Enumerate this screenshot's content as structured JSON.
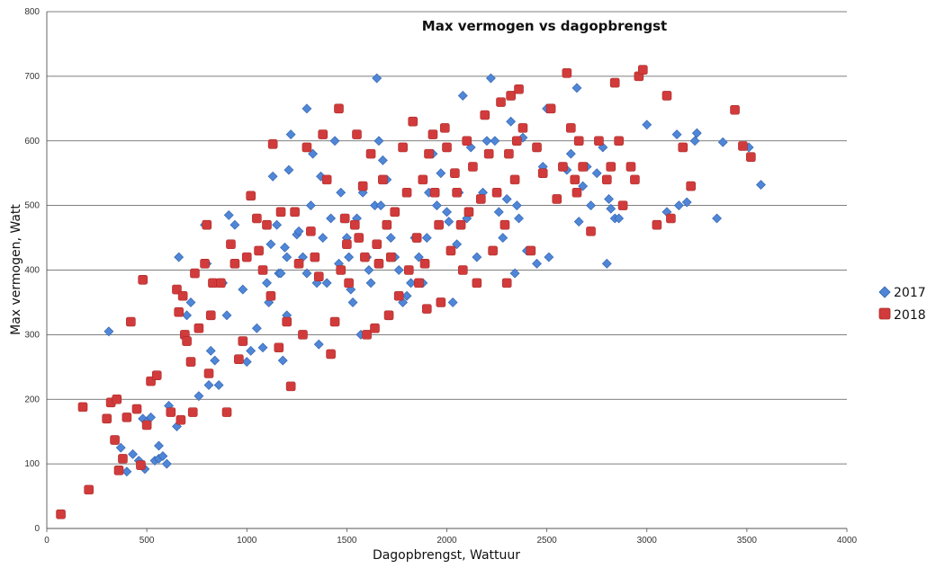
{
  "chart_data": {
    "type": "scatter",
    "title": "Max vermogen vs dagopbrengst",
    "xlabel": "Dagopbrengst, Wattuur",
    "ylabel": "Max vermogen, Watt",
    "xlim": [
      0,
      4000
    ],
    "ylim": [
      0,
      800
    ],
    "xticks": [
      0,
      500,
      1000,
      1500,
      2000,
      2500,
      3000,
      3500,
      4000
    ],
    "yticks": [
      0,
      100,
      200,
      300,
      400,
      500,
      600,
      700,
      800
    ],
    "grid": "horizontal",
    "legend_position": "right",
    "series": [
      {
        "name": "2017",
        "marker": "diamond",
        "color": "#4f86d8",
        "points": [
          [
            310,
            305
          ],
          [
            370,
            125
          ],
          [
            400,
            88
          ],
          [
            430,
            115
          ],
          [
            460,
            105
          ],
          [
            480,
            170
          ],
          [
            490,
            92
          ],
          [
            500,
            165
          ],
          [
            520,
            172
          ],
          [
            540,
            105
          ],
          [
            560,
            108
          ],
          [
            580,
            112
          ],
          [
            600,
            100
          ],
          [
            560,
            128
          ],
          [
            610,
            190
          ],
          [
            650,
            158
          ],
          [
            660,
            420
          ],
          [
            700,
            330
          ],
          [
            720,
            350
          ],
          [
            760,
            205
          ],
          [
            790,
            470
          ],
          [
            800,
            410
          ],
          [
            810,
            222
          ],
          [
            820,
            275
          ],
          [
            840,
            260
          ],
          [
            860,
            222
          ],
          [
            880,
            380
          ],
          [
            900,
            330
          ],
          [
            910,
            485
          ],
          [
            940,
            470
          ],
          [
            980,
            370
          ],
          [
            1000,
            258
          ],
          [
            1020,
            275
          ],
          [
            1050,
            310
          ],
          [
            1080,
            280
          ],
          [
            1100,
            380
          ],
          [
            1110,
            350
          ],
          [
            1120,
            440
          ],
          [
            1130,
            545
          ],
          [
            1150,
            470
          ],
          [
            1160,
            395
          ],
          [
            1170,
            395
          ],
          [
            1180,
            260
          ],
          [
            1190,
            435
          ],
          [
            1200,
            330
          ],
          [
            1200,
            420
          ],
          [
            1210,
            555
          ],
          [
            1220,
            610
          ],
          [
            1250,
            455
          ],
          [
            1260,
            460
          ],
          [
            1280,
            420
          ],
          [
            1300,
            650
          ],
          [
            1300,
            395
          ],
          [
            1320,
            500
          ],
          [
            1330,
            580
          ],
          [
            1350,
            380
          ],
          [
            1360,
            285
          ],
          [
            1370,
            545
          ],
          [
            1380,
            450
          ],
          [
            1400,
            380
          ],
          [
            1420,
            480
          ],
          [
            1440,
            600
          ],
          [
            1460,
            410
          ],
          [
            1470,
            520
          ],
          [
            1490,
            480
          ],
          [
            1500,
            450
          ],
          [
            1510,
            420
          ],
          [
            1520,
            370
          ],
          [
            1530,
            350
          ],
          [
            1550,
            480
          ],
          [
            1560,
            450
          ],
          [
            1570,
            300
          ],
          [
            1580,
            520
          ],
          [
            1600,
            420
          ],
          [
            1610,
            400
          ],
          [
            1620,
            380
          ],
          [
            1640,
            500
          ],
          [
            1650,
            697
          ],
          [
            1660,
            600
          ],
          [
            1670,
            500
          ],
          [
            1680,
            570
          ],
          [
            1700,
            540
          ],
          [
            1720,
            450
          ],
          [
            1740,
            420
          ],
          [
            1760,
            400
          ],
          [
            1780,
            350
          ],
          [
            1800,
            360
          ],
          [
            1820,
            380
          ],
          [
            1840,
            450
          ],
          [
            1860,
            420
          ],
          [
            1880,
            380
          ],
          [
            1900,
            450
          ],
          [
            1910,
            520
          ],
          [
            1930,
            580
          ],
          [
            1950,
            500
          ],
          [
            1970,
            550
          ],
          [
            2000,
            490
          ],
          [
            2010,
            475
          ],
          [
            2030,
            350
          ],
          [
            2050,
            440
          ],
          [
            2060,
            520
          ],
          [
            2080,
            670
          ],
          [
            2100,
            480
          ],
          [
            2120,
            590
          ],
          [
            2150,
            420
          ],
          [
            2180,
            520
          ],
          [
            2200,
            600
          ],
          [
            2220,
            697
          ],
          [
            2240,
            600
          ],
          [
            2260,
            490
          ],
          [
            2280,
            450
          ],
          [
            2300,
            510
          ],
          [
            2320,
            630
          ],
          [
            2340,
            395
          ],
          [
            2350,
            500
          ],
          [
            2360,
            480
          ],
          [
            2380,
            605
          ],
          [
            2400,
            430
          ],
          [
            2450,
            410
          ],
          [
            2480,
            560
          ],
          [
            2500,
            650
          ],
          [
            2510,
            420
          ],
          [
            2600,
            555
          ],
          [
            2620,
            580
          ],
          [
            2650,
            682
          ],
          [
            2660,
            475
          ],
          [
            2680,
            530
          ],
          [
            2700,
            560
          ],
          [
            2720,
            500
          ],
          [
            2750,
            550
          ],
          [
            2780,
            590
          ],
          [
            2800,
            410
          ],
          [
            2810,
            510
          ],
          [
            2820,
            495
          ],
          [
            2840,
            480
          ],
          [
            2860,
            480
          ],
          [
            3000,
            625
          ],
          [
            3100,
            490
          ],
          [
            3150,
            610
          ],
          [
            3160,
            500
          ],
          [
            3200,
            505
          ],
          [
            3240,
            600
          ],
          [
            3250,
            612
          ],
          [
            3350,
            480
          ],
          [
            3380,
            598
          ],
          [
            3510,
            590
          ],
          [
            3570,
            532
          ]
        ]
      },
      {
        "name": "2018",
        "marker": "square",
        "color": "#d23b3b",
        "points": [
          [
            70,
            22
          ],
          [
            180,
            188
          ],
          [
            210,
            60
          ],
          [
            300,
            170
          ],
          [
            320,
            195
          ],
          [
            340,
            137
          ],
          [
            350,
            200
          ],
          [
            360,
            90
          ],
          [
            380,
            108
          ],
          [
            400,
            172
          ],
          [
            420,
            320
          ],
          [
            450,
            185
          ],
          [
            470,
            98
          ],
          [
            480,
            385
          ],
          [
            500,
            160
          ],
          [
            520,
            228
          ],
          [
            550,
            237
          ],
          [
            620,
            180
          ],
          [
            650,
            370
          ],
          [
            660,
            335
          ],
          [
            670,
            168
          ],
          [
            680,
            360
          ],
          [
            690,
            300
          ],
          [
            700,
            290
          ],
          [
            720,
            258
          ],
          [
            730,
            180
          ],
          [
            740,
            395
          ],
          [
            760,
            310
          ],
          [
            790,
            410
          ],
          [
            800,
            470
          ],
          [
            810,
            240
          ],
          [
            820,
            330
          ],
          [
            830,
            380
          ],
          [
            870,
            380
          ],
          [
            900,
            180
          ],
          [
            920,
            440
          ],
          [
            940,
            410
          ],
          [
            960,
            262
          ],
          [
            980,
            290
          ],
          [
            1000,
            420
          ],
          [
            1020,
            515
          ],
          [
            1050,
            480
          ],
          [
            1060,
            430
          ],
          [
            1080,
            400
          ],
          [
            1100,
            470
          ],
          [
            1120,
            360
          ],
          [
            1130,
            595
          ],
          [
            1160,
            280
          ],
          [
            1170,
            490
          ],
          [
            1200,
            320
          ],
          [
            1220,
            220
          ],
          [
            1240,
            490
          ],
          [
            1260,
            410
          ],
          [
            1280,
            300
          ],
          [
            1300,
            590
          ],
          [
            1320,
            460
          ],
          [
            1340,
            420
          ],
          [
            1360,
            390
          ],
          [
            1380,
            610
          ],
          [
            1400,
            540
          ],
          [
            1420,
            270
          ],
          [
            1440,
            320
          ],
          [
            1460,
            650
          ],
          [
            1470,
            400
          ],
          [
            1490,
            480
          ],
          [
            1500,
            440
          ],
          [
            1510,
            380
          ],
          [
            1540,
            470
          ],
          [
            1550,
            610
          ],
          [
            1560,
            450
          ],
          [
            1580,
            530
          ],
          [
            1590,
            420
          ],
          [
            1600,
            300
          ],
          [
            1620,
            580
          ],
          [
            1640,
            310
          ],
          [
            1650,
            440
          ],
          [
            1660,
            410
          ],
          [
            1680,
            540
          ],
          [
            1700,
            470
          ],
          [
            1710,
            330
          ],
          [
            1720,
            420
          ],
          [
            1740,
            490
          ],
          [
            1760,
            360
          ],
          [
            1780,
            590
          ],
          [
            1800,
            520
          ],
          [
            1810,
            400
          ],
          [
            1830,
            630
          ],
          [
            1850,
            450
          ],
          [
            1860,
            380
          ],
          [
            1880,
            540
          ],
          [
            1890,
            410
          ],
          [
            1900,
            340
          ],
          [
            1910,
            580
          ],
          [
            1930,
            610
          ],
          [
            1940,
            520
          ],
          [
            1960,
            470
          ],
          [
            1970,
            350
          ],
          [
            1990,
            620
          ],
          [
            2000,
            590
          ],
          [
            2020,
            430
          ],
          [
            2040,
            550
          ],
          [
            2050,
            520
          ],
          [
            2070,
            470
          ],
          [
            2080,
            400
          ],
          [
            2100,
            600
          ],
          [
            2110,
            490
          ],
          [
            2130,
            560
          ],
          [
            2150,
            380
          ],
          [
            2170,
            510
          ],
          [
            2190,
            640
          ],
          [
            2210,
            580
          ],
          [
            2230,
            430
          ],
          [
            2250,
            520
          ],
          [
            2270,
            660
          ],
          [
            2290,
            470
          ],
          [
            2300,
            380
          ],
          [
            2310,
            580
          ],
          [
            2320,
            670
          ],
          [
            2340,
            540
          ],
          [
            2350,
            600
          ],
          [
            2360,
            680
          ],
          [
            2380,
            620
          ],
          [
            2420,
            430
          ],
          [
            2450,
            590
          ],
          [
            2480,
            550
          ],
          [
            2520,
            650
          ],
          [
            2550,
            510
          ],
          [
            2580,
            560
          ],
          [
            2600,
            705
          ],
          [
            2620,
            620
          ],
          [
            2640,
            540
          ],
          [
            2650,
            520
          ],
          [
            2660,
            600
          ],
          [
            2680,
            560
          ],
          [
            2720,
            460
          ],
          [
            2760,
            600
          ],
          [
            2800,
            540
          ],
          [
            2820,
            560
          ],
          [
            2840,
            690
          ],
          [
            2860,
            600
          ],
          [
            2880,
            500
          ],
          [
            2920,
            560
          ],
          [
            2940,
            540
          ],
          [
            2960,
            700
          ],
          [
            2980,
            710
          ],
          [
            3050,
            470
          ],
          [
            3100,
            670
          ],
          [
            3120,
            480
          ],
          [
            3180,
            590
          ],
          [
            3220,
            530
          ],
          [
            3440,
            648
          ],
          [
            3480,
            592
          ],
          [
            3520,
            575
          ]
        ]
      }
    ]
  }
}
